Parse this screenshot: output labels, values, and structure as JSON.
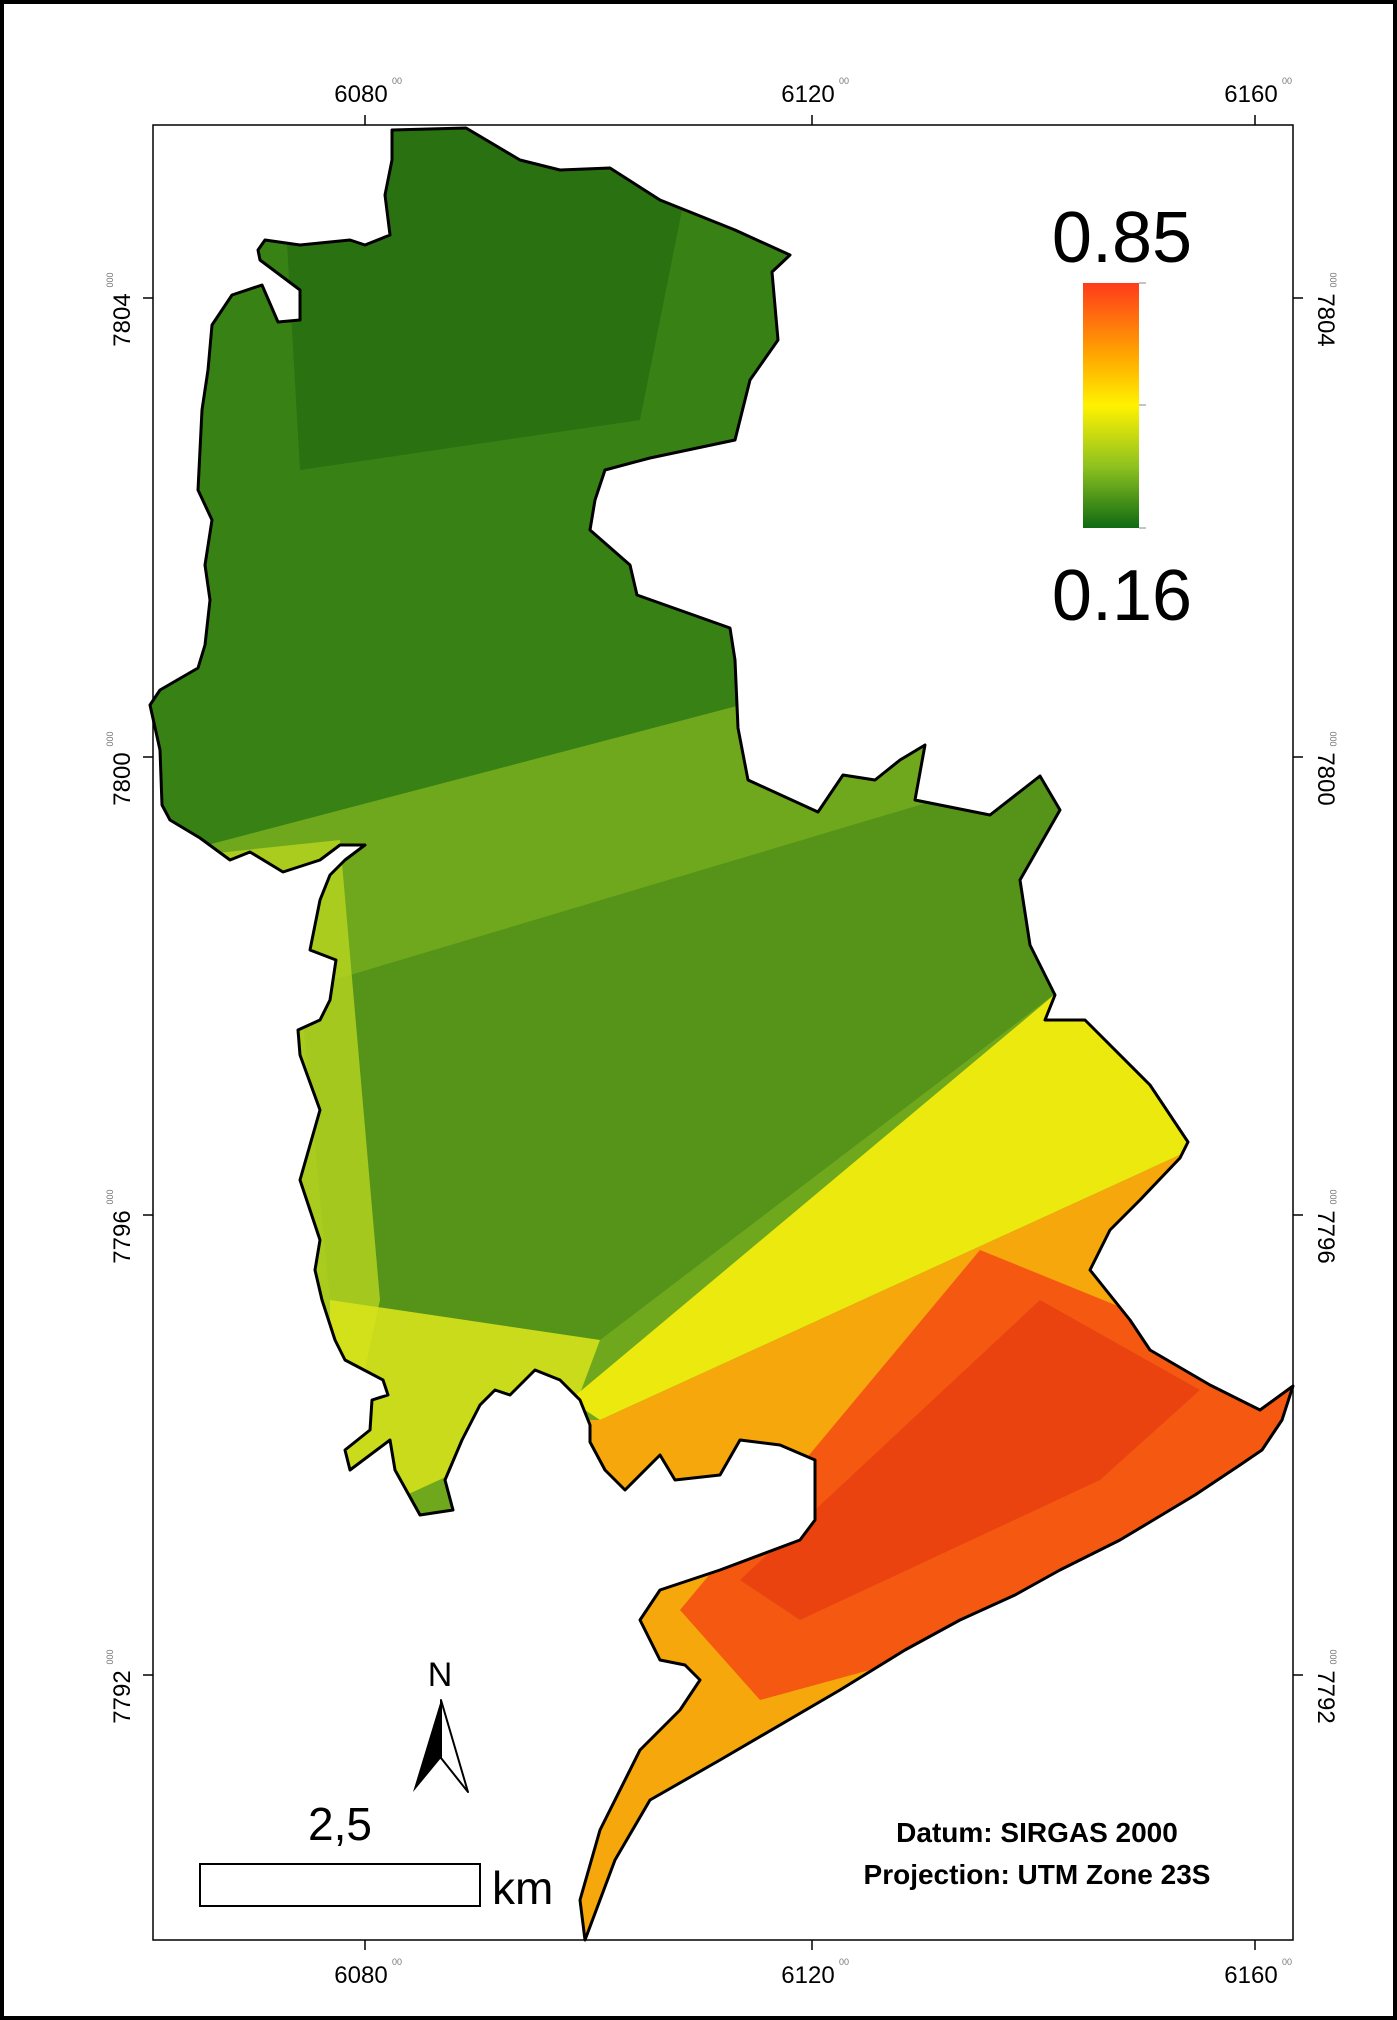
{
  "frame": {
    "x_ticks": [
      {
        "value": "6080",
        "sup": "00"
      },
      {
        "value": "6120",
        "sup": "00"
      },
      {
        "value": "6160",
        "sup": "00"
      }
    ],
    "y_ticks": [
      {
        "value": "7804",
        "sup": "000"
      },
      {
        "value": "7800",
        "sup": "000"
      },
      {
        "value": "7796",
        "sup": "000"
      },
      {
        "value": "7792",
        "sup": "000"
      }
    ]
  },
  "legend": {
    "max_label": "0.85",
    "min_label": "0.16",
    "colors": [
      "#ff3b1a",
      "#ffa800",
      "#fff200",
      "#8dc21f",
      "#0f6a14"
    ]
  },
  "north_arrow": {
    "label": "N"
  },
  "scale_bar": {
    "value": "2,5",
    "unit": "km"
  },
  "info": {
    "datum": "Datum: SIRGAS 2000",
    "projection": "Projection: UTM Zone 23S"
  },
  "colors": {
    "low": "#1f6b12",
    "mid": "#c9e01a",
    "high": "#f44a12",
    "outline": "#000000"
  }
}
